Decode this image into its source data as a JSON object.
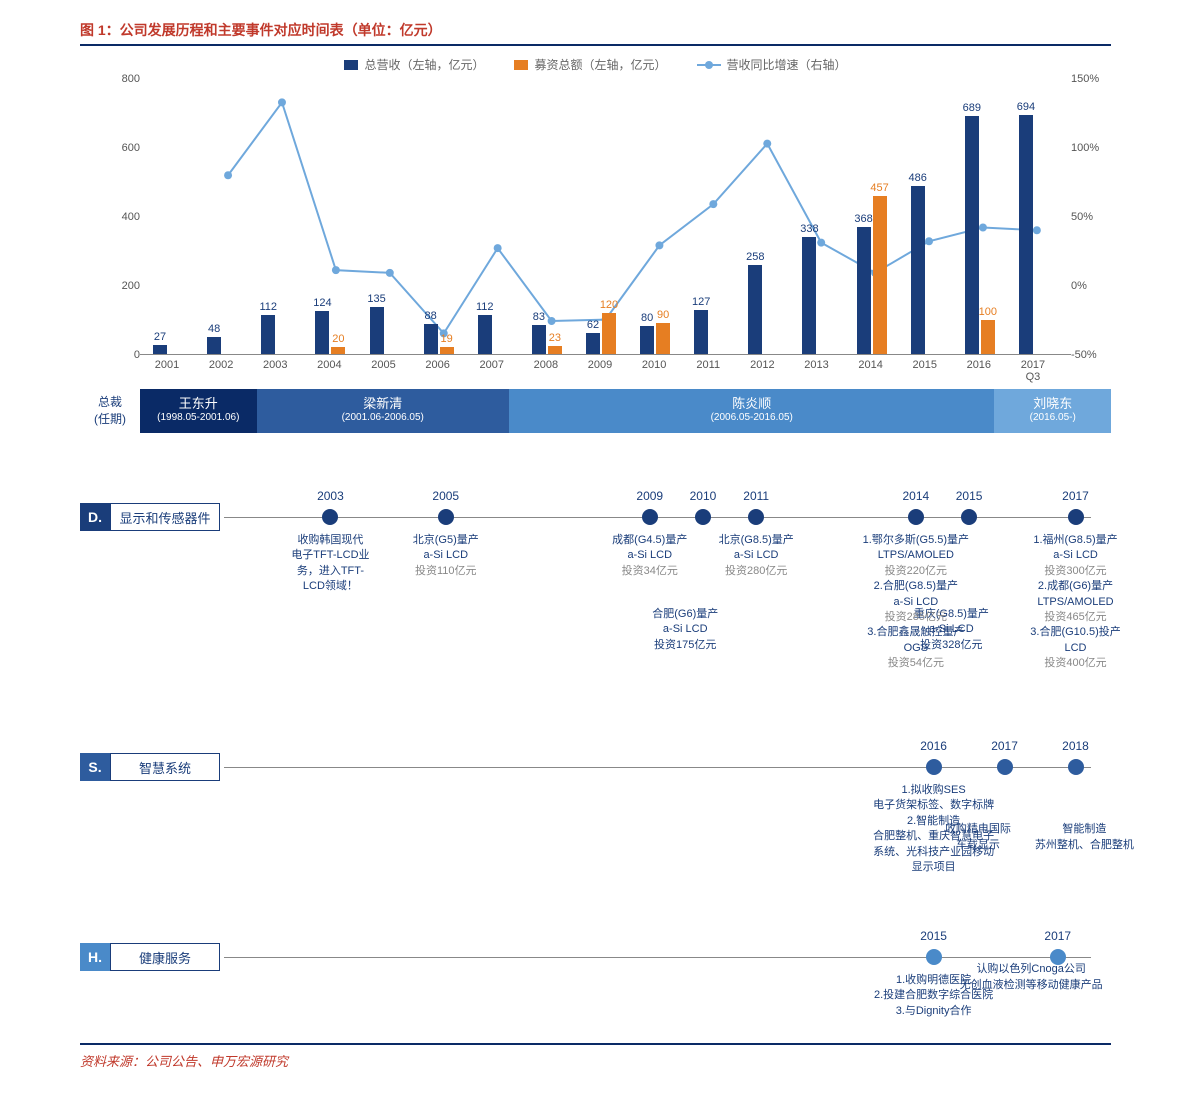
{
  "title": "图 1：公司发展历程和主要事件对应时间表（单位：亿元）",
  "source": "资料来源：公司公告、申万宏源研究",
  "legend": {
    "bar1": "总营收（左轴，亿元）",
    "bar2": "募资总额（左轴，亿元）",
    "line": "营收同比增速（右轴）"
  },
  "colors": {
    "navy": "#1a3d7a",
    "orange": "#e67e22",
    "lightblue": "#6fa8dc",
    "ceo1": "#0a2a66",
    "ceo2": "#2e5c9e",
    "ceo3": "#4a8ac9",
    "ceo4": "#6fa8dc",
    "title_red": "#c0392b",
    "grid": "#888888"
  },
  "chart": {
    "type": "combo-bar-line",
    "y_left": {
      "min": 0,
      "max": 800,
      "ticks": [
        0,
        200,
        400,
        600,
        800
      ]
    },
    "y_right": {
      "min": -50,
      "max": 150,
      "ticks": [
        "-50%",
        "0%",
        "50%",
        "100%",
        "150%"
      ]
    },
    "years": [
      "2001",
      "2002",
      "2003",
      "2004",
      "2005",
      "2006",
      "2007",
      "2008",
      "2009",
      "2010",
      "2011",
      "2012",
      "2013",
      "2014",
      "2015",
      "2016",
      "2017"
    ],
    "x_note_2017": "Q3",
    "revenue": [
      27,
      48,
      112,
      124,
      135,
      88,
      112,
      83,
      62,
      80,
      127,
      258,
      338,
      368,
      486,
      689,
      694
    ],
    "fundraise": [
      null,
      null,
      null,
      20,
      null,
      19,
      null,
      23,
      120,
      90,
      null,
      null,
      null,
      457,
      null,
      100,
      null
    ],
    "growth_pct": [
      null,
      80,
      133,
      11,
      9,
      -35,
      27,
      -26,
      -25,
      29,
      59,
      103,
      31,
      9,
      32,
      42,
      40
    ]
  },
  "ceo": {
    "label": "总裁\n(任期)",
    "segs": [
      {
        "name": "王东升",
        "term": "(1998.05-2001.06)",
        "width": 12,
        "color": "#0a2a66"
      },
      {
        "name": "梁新清",
        "term": "(2001.06-2006.05)",
        "width": 26,
        "color": "#2e5c9e"
      },
      {
        "name": "陈炎顺",
        "term": "(2006.05-2016.05)",
        "width": 50,
        "color": "#4a8ac9"
      },
      {
        "name": "刘晓东",
        "term": "(2016.05-)",
        "width": 12,
        "color": "#6fa8dc"
      }
    ]
  },
  "tl_D": {
    "tag": "D.",
    "name": "显示和传感器件",
    "color": "#1a3d7a",
    "above": [
      {
        "x": 52,
        "lines": [
          "合肥(G6)量产",
          "a-Si LCD",
          "投资175亿元"
        ]
      },
      {
        "x": 82,
        "lines": [
          "重庆(G8.5)量产",
          "a-Si LCD",
          "投资328亿元"
        ]
      }
    ],
    "nodes": [
      {
        "x": 12,
        "year": "2003",
        "below": [
          "收购韩国现代",
          "电子TFT-LCD业",
          "务，进入TFT-",
          "LCD领域！"
        ]
      },
      {
        "x": 25,
        "year": "2005",
        "below": [
          "北京(G5)量产",
          "a-Si LCD",
          "<g>投资110亿元</g>"
        ]
      },
      {
        "x": 48,
        "year": "2009",
        "below": [
          "成都(G4.5)量产",
          "a-Si LCD",
          "<g>投资34亿元</g>"
        ]
      },
      {
        "x": 54,
        "year": "2010"
      },
      {
        "x": 60,
        "year": "2011",
        "below": [
          "北京(G8.5)量产",
          "a-Si LCD",
          "<g>投资280亿元</g>"
        ]
      },
      {
        "x": 78,
        "year": "2014",
        "below": [
          "1.鄂尔多斯(G5.5)量产",
          "LTPS/AMOLED",
          "<g>投资220亿元</g>",
          "2.合肥(G8.5)量产",
          "a-Si LCD",
          "<g>投资285亿元</g>",
          "3.合肥鑫晟触控量产",
          "OGS",
          "<g>投资54亿元</g>"
        ]
      },
      {
        "x": 84,
        "year": "2015"
      },
      {
        "x": 96,
        "year": "2017",
        "below": [
          "1.福州(G8.5)量产",
          "a-Si LCD",
          "<g>投资300亿元</g>",
          "2.成都(G6)量产",
          "LTPS/AMOLED",
          "<g>投资465亿元</g>",
          "3.合肥(G10.5)投产",
          "LCD",
          "<g>投资400亿元</g>"
        ]
      }
    ]
  },
  "tl_S": {
    "tag": "S.",
    "name": "智慧系统",
    "color": "#2e5c9e",
    "above": [
      {
        "x": 85,
        "lines": [
          "收购精电国际",
          "车载显示"
        ]
      },
      {
        "x": 97,
        "lines": [
          "智能制造",
          "苏州整机、合肥整机"
        ]
      }
    ],
    "nodes": [
      {
        "x": 80,
        "year": "2016",
        "below": [
          "1.拟收购SES",
          "电子货架标签、数字标牌",
          "2.智能制造",
          "合肥整机、重庆智慧电子",
          "系统、光科技产业园移动",
          "显示项目"
        ]
      },
      {
        "x": 88,
        "year": "2017"
      },
      {
        "x": 96,
        "year": "2018"
      }
    ]
  },
  "tl_H": {
    "tag": "H.",
    "name": "健康服务",
    "color": "#4a8ac9",
    "above": [
      {
        "x": 91,
        "lines": [
          "认购以色列Cnoga公司",
          "无创血液检测等移动健康产品"
        ]
      }
    ],
    "nodes": [
      {
        "x": 80,
        "year": "2015",
        "below": [
          "1.收购明德医院",
          "2.投建合肥数字综合医院",
          "3.与Dignity合作"
        ]
      },
      {
        "x": 94,
        "year": "2017"
      }
    ]
  }
}
